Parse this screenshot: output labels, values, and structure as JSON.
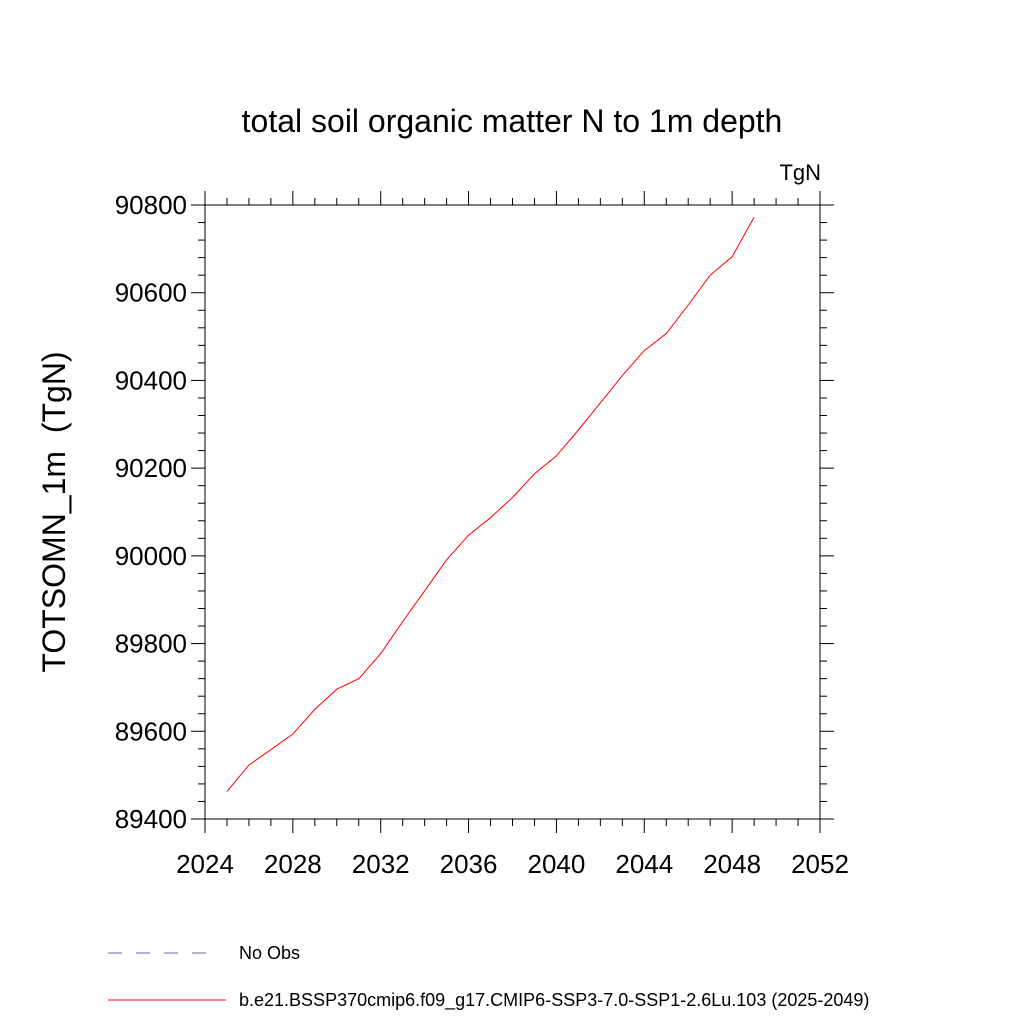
{
  "chart_data": {
    "type": "line",
    "title": "total soil organic matter N to 1m depth",
    "units": "TgN",
    "xlabel": "",
    "ylabel": "TOTSOMN_1m  (TgN)",
    "xlim": [
      2024,
      2052
    ],
    "ylim": [
      89400,
      90800
    ],
    "xticks": [
      2024,
      2028,
      2032,
      2036,
      2040,
      2044,
      2048,
      2052
    ],
    "yticks": [
      89400,
      89600,
      89800,
      90000,
      90200,
      90400,
      90600,
      90800
    ],
    "grid": false,
    "series": [
      {
        "name": "b.e21.BSSP370cmip6.f09_g17.CMIP6-SSP3-7.0-SSP1-2.6Lu.103 (2025-2049)",
        "color": "#ff0000",
        "style": "solid",
        "x": [
          2025,
          2026,
          2027,
          2028,
          2029,
          2030,
          2031,
          2032,
          2033,
          2034,
          2035,
          2036,
          2037,
          2038,
          2039,
          2040,
          2041,
          2042,
          2043,
          2044,
          2045,
          2046,
          2047,
          2048,
          2049
        ],
        "y": [
          89463,
          89523,
          89558,
          89594,
          89650,
          89696,
          89720,
          89777,
          89850,
          89920,
          89991,
          90047,
          90087,
          90133,
          90187,
          90228,
          90287,
          90349,
          90411,
          90468,
          90507,
          90572,
          90640,
          90682,
          90772
        ]
      }
    ],
    "legend": {
      "placement": "bottom-left",
      "entries": [
        {
          "label": "No Obs",
          "color": "#7060b0",
          "style": "dashed"
        },
        {
          "label": "b.e21.BSSP370cmip6.f09_g17.CMIP6-SSP3-7.0-SSP1-2.6Lu.103 (2025-2049)",
          "color": "#ff0000",
          "style": "solid"
        }
      ]
    }
  }
}
